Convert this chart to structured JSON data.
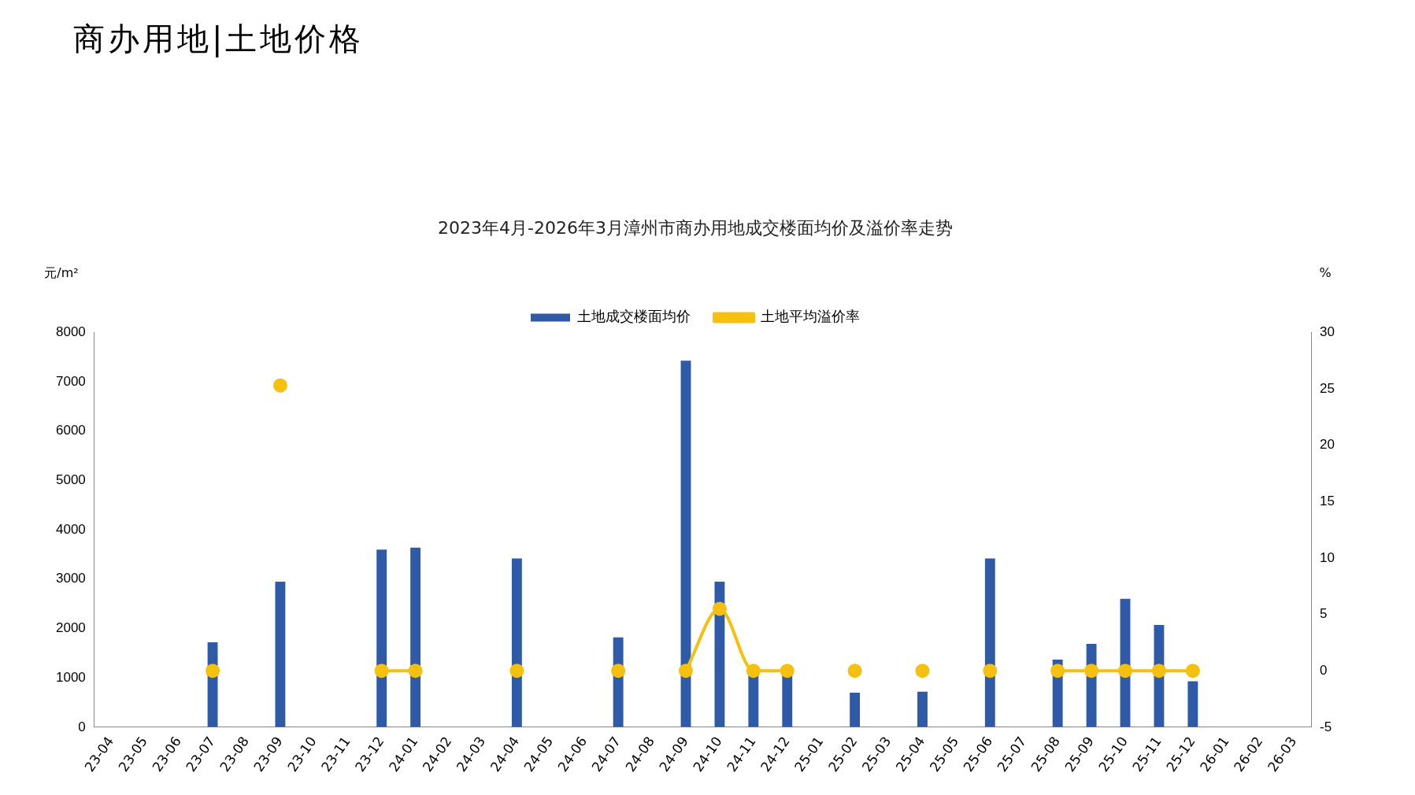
{
  "chart_data": {
    "type": "bar",
    "title": "商办用地|土地价格",
    "subtitle": "2023年4月-2026年3月漳州市商办用地成交楼面均价及溢价率走势",
    "ylabel": "元/m²",
    "y2label": "%",
    "categories": [
      "23-04",
      "23-05",
      "23-06",
      "23-07",
      "23-08",
      "23-09",
      "23-10",
      "23-11",
      "23-12",
      "24-01",
      "24-02",
      "24-03",
      "24-04",
      "24-05",
      "24-06",
      "24-07",
      "24-08",
      "24-09",
      "24-10",
      "24-11",
      "24-12",
      "25-01",
      "25-02",
      "25-03",
      "25-04",
      "25-05",
      "25-06",
      "25-07",
      "25-08",
      "25-09",
      "25-10",
      "25-11",
      "25-12",
      "26-01",
      "26-02",
      "26-03"
    ],
    "series": [
      {
        "name": "土地成交楼面均价",
        "color": "#2e5aa8",
        "values": [
          null,
          null,
          null,
          1720,
          null,
          2950,
          null,
          null,
          3600,
          3640,
          null,
          null,
          3420,
          null,
          null,
          1820,
          null,
          7430,
          2950,
          1050,
          1050,
          null,
          700,
          null,
          720,
          null,
          3420,
          null,
          1370,
          1690,
          2600,
          2070,
          930,
          null,
          null,
          null
        ]
      },
      {
        "name": "土地平均溢价率",
        "type": "line",
        "axis": "y2",
        "color": "#f5c00f",
        "values": [
          null,
          null,
          null,
          0,
          null,
          25.3,
          null,
          null,
          0,
          0,
          null,
          null,
          0,
          null,
          null,
          0,
          null,
          0,
          5.5,
          0,
          0,
          null,
          0,
          null,
          0,
          null,
          0,
          null,
          0,
          0,
          0,
          0,
          0,
          null,
          null,
          null
        ]
      }
    ],
    "ylim": [
      0,
      8000
    ],
    "yticks": [
      0,
      1000,
      2000,
      3000,
      4000,
      5000,
      6000,
      7000,
      8000
    ],
    "y2lim": [
      -5,
      30
    ],
    "y2ticks": [
      -5,
      0,
      5,
      10,
      15,
      20,
      25,
      30
    ],
    "grid": false,
    "legend": "top",
    "marker": "circle"
  }
}
